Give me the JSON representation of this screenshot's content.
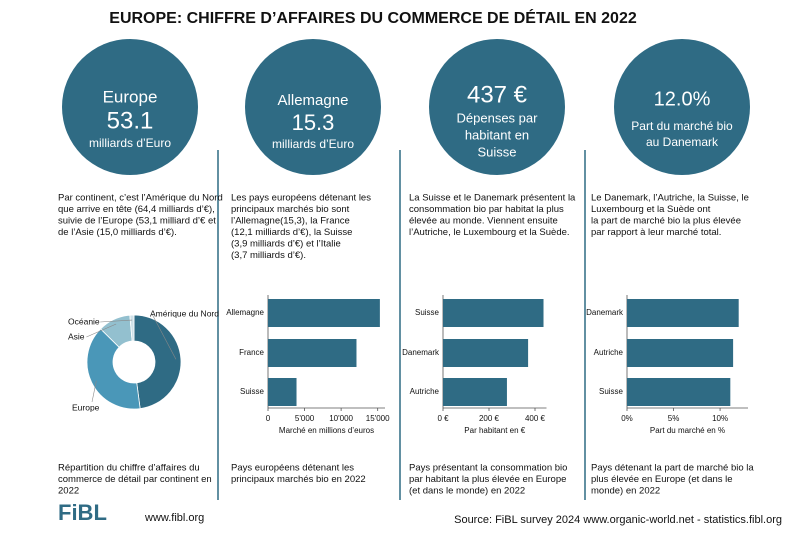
{
  "title": "EUROPE: CHIFFRE D’AFFAIRES DU COMMERCE DE DÉTAIL EN 2022",
  "panels": [
    {
      "lines": [
        "Europe",
        "53.1",
        "milliards d’Euro"
      ],
      "description": [
        "Par continent, c’est l’Amérique du Nord",
        "que arrive en tête (64,4 milliards d’€),",
        "suivie de l’Europe (53,1 milliard d’€ et",
        "de l’Asie (15,0 milliards d’€)."
      ],
      "caption": [
        "Répartition du chiffre d’affaires du",
        "commerce de détail par continent en",
        "2022"
      ]
    },
    {
      "lines": [
        "Allemagne",
        "15.3",
        "milliards d’Euro"
      ],
      "description": [
        "Les pays européens détenant les",
        "principaux marchés bio sont",
        "l’Allemagne(15,3), la France",
        "(12,1 milliards d’€), la Suisse",
        "(3,9 milliards d’€) et  l’Italie",
        "(3,7 milliards d’€)."
      ],
      "caption": [
        "Pays européens détenant les",
        "principaux marchés bio en 2022"
      ]
    },
    {
      "lines": [
        "437 €",
        "Dépenses par",
        "habitant en",
        "Suisse"
      ],
      "description": [
        "La Suisse et le Danemark présentent la",
        "consommation bio par habitat la plus",
        "élevée au monde. Viennent ensuite",
        "l’Autriche, le Luxembourg et la Suède."
      ],
      "caption": [
        "Pays présentant la consommation bio",
        "par habitant la plus élevée en Europe",
        "(et dans le monde) en 2022"
      ]
    },
    {
      "lines": [
        "12.0%",
        "Part du marché bio",
        "au Danemark"
      ],
      "description": [
        "Le Danemark, l’Autriche, la Suisse, le",
        "Luxembourg et la Suède ont",
        "la part de marché bio la plus élevée",
        "par rapport à leur marché total."
      ],
      "caption": [
        "Pays détenant la part de marché bio la",
        "plus élevée en Europe (et dans le",
        "monde) en 2022"
      ]
    }
  ],
  "chart_data": [
    {
      "type": "pie",
      "donut": true,
      "categories": [
        "Amérique du Nord",
        "Europe",
        "Asie",
        "Océanie"
      ],
      "values": [
        64.4,
        53.1,
        15.0,
        1.9
      ],
      "colors": [
        "#2f6b84",
        "#4a97b8",
        "#93c0cf",
        "#cfe1e8"
      ]
    },
    {
      "type": "bar",
      "orientation": "horizontal",
      "categories": [
        "Allemagne",
        "France",
        "Suisse"
      ],
      "values": [
        15300,
        12100,
        3900
      ],
      "color": "#2f6b84",
      "xlim": [
        0,
        16000
      ],
      "xticks": [
        0,
        {
          "value": 5000,
          "label": "5'000"
        },
        {
          "value": 10000,
          "label": "10'000"
        },
        {
          "value": 15000,
          "label": "15'000"
        }
      ],
      "xlabel": "Marché en millions d’euros"
    },
    {
      "type": "bar",
      "orientation": "horizontal",
      "categories": [
        "Suisse",
        "Danemark",
        "Autriche"
      ],
      "values": [
        437,
        370,
        278
      ],
      "color": "#2f6b84",
      "xlim": [
        0,
        450
      ],
      "xticks": [
        {
          "value": 0,
          "label": "0 €"
        },
        {
          "value": 200,
          "label": "200 €"
        },
        {
          "value": 400,
          "label": "400 €"
        }
      ],
      "xlabel": "Par habitant en €"
    },
    {
      "type": "bar",
      "orientation": "horizontal",
      "categories": [
        "Danemark",
        "Autriche",
        "Suisse"
      ],
      "values": [
        12.0,
        11.4,
        11.1
      ],
      "color": "#2f6b84",
      "xlim": [
        0,
        13
      ],
      "xticks": [
        {
          "value": 0,
          "label": "0%"
        },
        {
          "value": 5,
          "label": "5%"
        },
        {
          "value": 10,
          "label": "10%"
        }
      ],
      "xlabel": "Part du marché en %"
    }
  ],
  "footer": {
    "logo": "FiBL",
    "url": "www.fibl.org",
    "source": "Source: FiBL survey 2024 www.organic-world.net - statistics.fibl.org"
  }
}
